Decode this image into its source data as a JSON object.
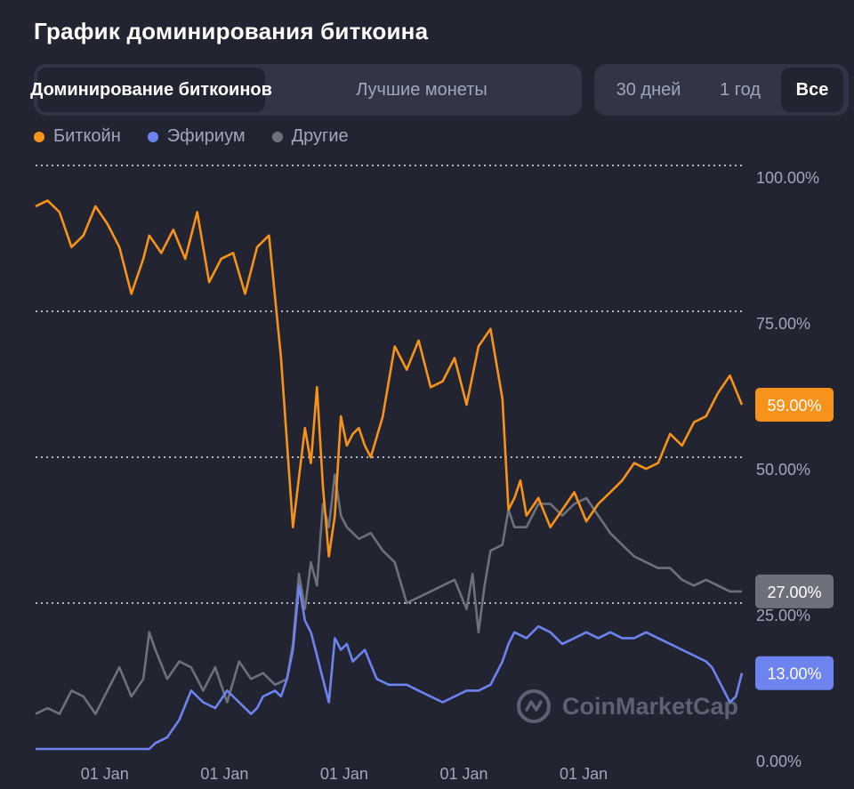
{
  "title": "График доминирования биткоина",
  "tabs": [
    {
      "label": "Доминирование биткоинов",
      "active": true
    },
    {
      "label": "Лучшие монеты",
      "active": false
    }
  ],
  "ranges": [
    {
      "label": "30 дней",
      "active": false
    },
    {
      "label": "1 год",
      "active": false
    },
    {
      "label": "Все",
      "active": true
    }
  ],
  "watermark": "CoinMarketCap",
  "colors": {
    "btc": "#f7931a",
    "eth": "#6c83f0",
    "others": "#6e707c",
    "background": "#222531",
    "grid": "#ffffff"
  },
  "chart_data": {
    "type": "line",
    "title": "",
    "xlabel": "",
    "ylabel": "",
    "ylim": [
      0,
      100
    ],
    "y_ticks": [
      "100.00%",
      "75.00%",
      "50.00%",
      "25.00%",
      "0.00%"
    ],
    "x_ticks": [
      {
        "label": "01 Jan",
        "x": 2014
      },
      {
        "label": "01 Jan",
        "x": 2015
      },
      {
        "label": "01 Jan",
        "x": 2016
      },
      {
        "label": "01 Jan",
        "x": 2017
      },
      {
        "label": "01 Jan",
        "x": 2018
      }
    ],
    "xlim": [
      2013.4,
      2019.3
    ],
    "legend": "top-left",
    "series": [
      {
        "name": "Биткойн",
        "color": "#f7931a",
        "last_label": "59.00%",
        "x": [
          2013.4,
          2013.5,
          2013.6,
          2013.7,
          2013.8,
          2013.9,
          2014.0,
          2014.1,
          2014.2,
          2014.3,
          2014.35,
          2014.45,
          2014.55,
          2014.65,
          2014.75,
          2014.85,
          2014.95,
          2015.05,
          2015.15,
          2015.25,
          2015.35,
          2015.45,
          2015.55,
          2015.65,
          2015.7,
          2015.75,
          2015.8,
          2015.85,
          2015.9,
          2015.95,
          2016.0,
          2016.05,
          2016.1,
          2016.15,
          2016.2,
          2016.3,
          2016.4,
          2016.5,
          2016.6,
          2016.7,
          2016.8,
          2016.9,
          2017.0,
          2017.1,
          2017.2,
          2017.3,
          2017.35,
          2017.4,
          2017.45,
          2017.5,
          2017.6,
          2017.7,
          2017.8,
          2017.9,
          2018.0,
          2018.1,
          2018.2,
          2018.3,
          2018.4,
          2018.5,
          2018.6,
          2018.7,
          2018.8,
          2018.9,
          2019.0,
          2019.1,
          2019.2,
          2019.3
        ],
        "y": [
          93,
          94,
          92,
          86,
          88,
          93,
          90,
          86,
          78,
          84,
          88,
          85,
          89,
          84,
          92,
          80,
          84,
          85,
          78,
          86,
          88,
          67,
          38,
          55,
          49,
          62,
          45,
          33,
          40,
          57,
          52,
          54,
          55,
          52,
          50,
          57,
          69,
          65,
          70,
          62,
          63,
          67,
          59,
          69,
          72,
          60,
          41,
          43,
          46,
          40,
          43,
          38,
          41,
          44,
          39,
          42,
          44,
          46,
          49,
          48,
          49,
          54,
          52,
          56,
          57,
          61,
          64,
          59
        ]
      },
      {
        "name": "Эфириум",
        "color": "#6c83f0",
        "last_label": "13.00%",
        "x": [
          2013.4,
          2013.6,
          2013.8,
          2014.0,
          2014.2,
          2014.3,
          2014.35,
          2014.4,
          2014.5,
          2014.6,
          2014.7,
          2014.8,
          2014.9,
          2015.0,
          2015.05,
          2015.1,
          2015.15,
          2015.2,
          2015.25,
          2015.3,
          2015.4,
          2015.45,
          2015.5,
          2015.55,
          2015.6,
          2015.65,
          2015.7,
          2015.75,
          2015.8,
          2015.85,
          2015.9,
          2015.95,
          2016.0,
          2016.05,
          2016.15,
          2016.25,
          2016.35,
          2016.5,
          2016.6,
          2016.7,
          2016.8,
          2016.9,
          2017.0,
          2017.1,
          2017.2,
          2017.3,
          2017.35,
          2017.4,
          2017.5,
          2017.6,
          2017.7,
          2017.8,
          2017.9,
          2018.0,
          2018.1,
          2018.2,
          2018.3,
          2018.4,
          2018.5,
          2018.6,
          2018.7,
          2018.8,
          2018.9,
          2019.0,
          2019.05,
          2019.1,
          2019.15,
          2019.2,
          2019.25,
          2019.3
        ],
        "y": [
          0,
          0,
          0,
          0,
          0,
          0,
          0,
          1,
          2,
          5,
          10,
          8,
          7,
          10,
          9,
          8,
          7,
          6,
          7,
          9,
          10,
          9,
          12,
          17,
          28,
          22,
          20,
          16,
          12,
          8,
          19,
          17,
          18,
          15,
          17,
          12,
          11,
          11,
          10,
          9,
          8,
          9,
          10,
          10,
          11,
          15,
          18,
          20,
          19,
          21,
          20,
          18,
          19,
          20,
          19,
          20,
          19,
          19,
          20,
          19,
          18,
          17,
          16,
          15,
          14,
          12,
          10,
          8,
          9,
          13
        ]
      },
      {
        "name": "Другие",
        "color": "#6e707c",
        "last_label": "27.00%",
        "x": [
          2013.4,
          2013.5,
          2013.6,
          2013.7,
          2013.8,
          2013.9,
          2014.0,
          2014.1,
          2014.2,
          2014.3,
          2014.35,
          2014.4,
          2014.5,
          2014.6,
          2014.7,
          2014.8,
          2014.9,
          2015.0,
          2015.1,
          2015.2,
          2015.3,
          2015.4,
          2015.5,
          2015.55,
          2015.6,
          2015.65,
          2015.7,
          2015.75,
          2015.8,
          2015.85,
          2015.9,
          2015.95,
          2016.0,
          2016.1,
          2016.2,
          2016.3,
          2016.4,
          2016.5,
          2016.6,
          2016.7,
          2016.8,
          2016.9,
          2017.0,
          2017.05,
          2017.1,
          2017.15,
          2017.2,
          2017.3,
          2017.35,
          2017.4,
          2017.5,
          2017.6,
          2017.7,
          2017.8,
          2017.9,
          2018.0,
          2018.1,
          2018.2,
          2018.3,
          2018.4,
          2018.5,
          2018.6,
          2018.7,
          2018.8,
          2018.9,
          2019.0,
          2019.1,
          2019.2,
          2019.3
        ],
        "y": [
          6,
          7,
          6,
          10,
          9,
          6,
          10,
          14,
          9,
          12,
          20,
          17,
          12,
          15,
          14,
          10,
          14,
          8,
          15,
          12,
          13,
          11,
          12,
          18,
          30,
          24,
          32,
          28,
          42,
          38,
          47,
          40,
          38,
          36,
          37,
          34,
          32,
          25,
          26,
          27,
          28,
          29,
          24,
          30,
          20,
          28,
          34,
          35,
          41,
          38,
          38,
          42,
          42,
          40,
          42,
          43,
          40,
          37,
          35,
          33,
          32,
          31,
          31,
          29,
          28,
          29,
          28,
          27,
          27
        ]
      }
    ]
  }
}
